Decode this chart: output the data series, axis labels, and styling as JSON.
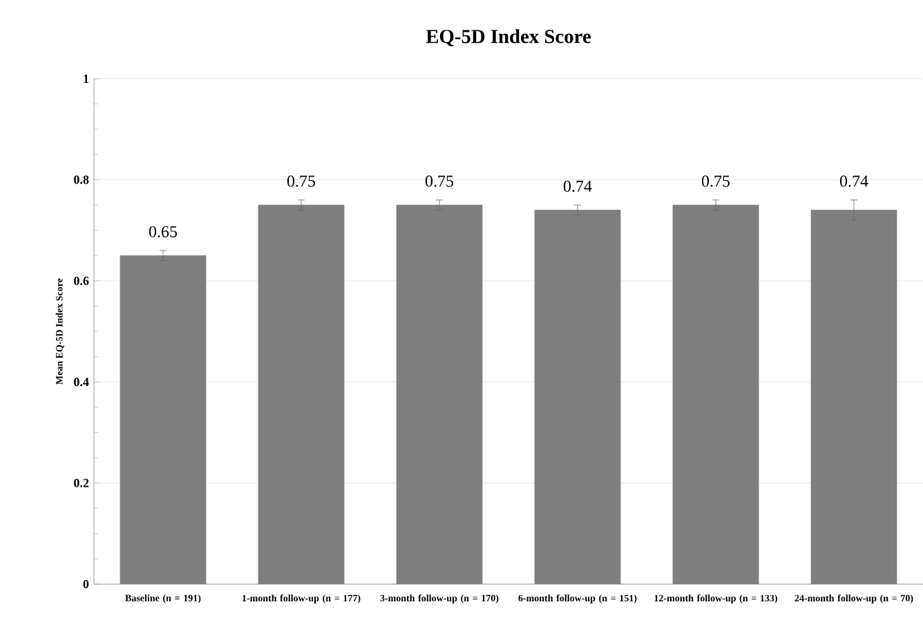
{
  "chart_data": {
    "type": "bar",
    "title": "EQ-5D Index Score",
    "ylabel": "Mean EQ-5D Index Score",
    "categories": [
      "Baseline (n = 191)",
      "1-month follow-up (n = 177)",
      "3-month follow-up (n = 170)",
      "6-month follow-up (n = 151)",
      "12-month follow-up (n = 133)",
      "24-month follow-up (n = 70)"
    ],
    "values": [
      0.65,
      0.75,
      0.75,
      0.74,
      0.75,
      0.74
    ],
    "errors": [
      0.01,
      0.01,
      0.01,
      0.01,
      0.01,
      0.02
    ],
    "color": "#7f7f7f",
    "ylim": [
      0,
      1
    ],
    "yticks": [
      0,
      0.2,
      0.4,
      0.6,
      0.8,
      1
    ],
    "grid": "y",
    "data_labels": true
  }
}
